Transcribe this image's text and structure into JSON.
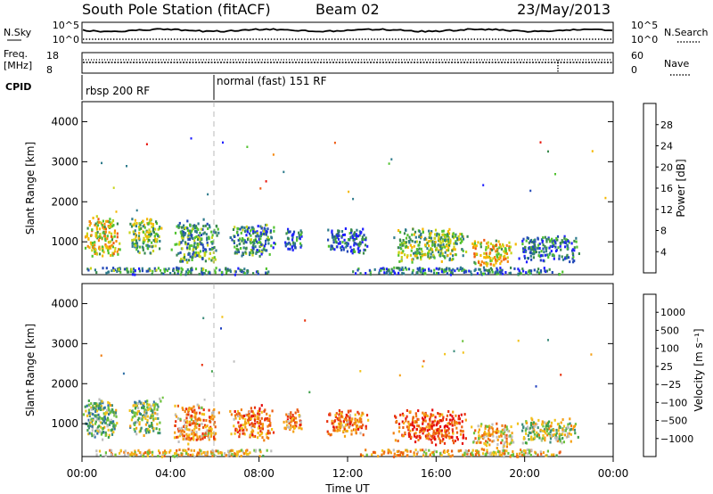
{
  "header": {
    "station": "South Pole Station (fitACF)",
    "beam": "Beam 02",
    "date": "23/May/2013"
  },
  "top_panels": {
    "nsky": {
      "label": "N.Sky",
      "ticks_left": [
        "10^5",
        "10^0"
      ],
      "right_label": "N.Search",
      "ticks_right": [
        "10^5",
        "10^0"
      ]
    },
    "freq": {
      "label_line1": "Freq.",
      "label_line2": "[MHz]",
      "ticks_left": [
        "18",
        "8"
      ],
      "right_label": "Nave",
      "ticks_right": [
        "60",
        "0"
      ]
    },
    "cpid": {
      "label": "CPID",
      "segments": [
        {
          "start_hour": 0,
          "text": "rbsp 200 RF"
        },
        {
          "start_hour": 6,
          "text": "normal (fast) 151 RF"
        }
      ]
    }
  },
  "time_axis": {
    "label": "Time UT",
    "ticks": [
      "00:00",
      "04:00",
      "08:00",
      "12:00",
      "16:00",
      "20:00",
      "00:00"
    ]
  },
  "chart_data": [
    {
      "type": "heatmap",
      "name": "power",
      "ylabel": "Slant Range [km]",
      "ylim": [
        180,
        4500
      ],
      "y_ticks": [
        1000,
        2000,
        3000,
        4000
      ],
      "xlim": [
        0,
        24
      ],
      "colorbar": {
        "label": "Power [dB]",
        "ticks": [
          "4",
          "8",
          "12",
          "16",
          "20",
          "24",
          "28"
        ],
        "colors": [
          "#1f1fff",
          "#2349b8",
          "#2e7b8c",
          "#3a8a4d",
          "#52c230",
          "#c8d41a",
          "#f5b800",
          "#f5870c",
          "#ee5a12",
          "#e8140a"
        ]
      },
      "features": [
        {
          "start_hour": 0.0,
          "end_hour": 1.7,
          "range_km": [
            600,
            1700
          ],
          "level": 0.6
        },
        {
          "start_hour": 2.0,
          "end_hour": 3.6,
          "range_km": [
            700,
            1700
          ],
          "level": 0.45
        },
        {
          "start_hour": 4.0,
          "end_hour": 6.2,
          "range_km": [
            500,
            1600
          ],
          "level": 0.35
        },
        {
          "start_hour": 6.6,
          "end_hour": 8.8,
          "range_km": [
            600,
            1500
          ],
          "level": 0.3
        },
        {
          "start_hour": 9.0,
          "end_hour": 10.0,
          "range_km": [
            800,
            1400
          ],
          "level": 0.2
        },
        {
          "start_hour": 11.0,
          "end_hour": 13.0,
          "range_km": [
            700,
            1400
          ],
          "level": 0.2
        },
        {
          "start_hour": 14.0,
          "end_hour": 17.5,
          "range_km": [
            500,
            1400
          ],
          "level": 0.45
        },
        {
          "start_hour": 17.5,
          "end_hour": 19.6,
          "range_km": [
            400,
            1100
          ],
          "level": 0.62
        },
        {
          "start_hour": 19.6,
          "end_hour": 22.5,
          "range_km": [
            500,
            1200
          ],
          "level": 0.25
        },
        {
          "start_hour": 0.0,
          "end_hour": 9.0,
          "range_km": [
            200,
            400
          ],
          "level": 0.3
        },
        {
          "start_hour": 12.0,
          "end_hour": 22.0,
          "range_km": [
            200,
            400
          ],
          "level": 0.25
        }
      ]
    },
    {
      "type": "heatmap",
      "name": "velocity",
      "ylabel": "Slant Range [km]",
      "ylim": [
        180,
        4500
      ],
      "y_ticks": [
        1000,
        2000,
        3000,
        4000
      ],
      "xlim": [
        0,
        24
      ],
      "colorbar": {
        "label": "Velocity [m s⁻¹]",
        "ticks": [
          "1000",
          "500",
          "100",
          "25",
          "−25",
          "−100",
          "−500",
          "−1000"
        ],
        "colors": [
          "#1f3fbf",
          "#2f6fa5",
          "#3e8d7c",
          "#3fa04a",
          "#6cc23c",
          "#bdbdbd",
          "#f2c21a",
          "#f5a013",
          "#f07e12",
          "#eb5a10",
          "#e8300c",
          "#e60d0d"
        ]
      },
      "features": [
        {
          "start_hour": 0.0,
          "end_hour": 1.7,
          "range_km": [
            600,
            1700
          ],
          "level": 0.35
        },
        {
          "start_hour": 2.0,
          "end_hour": 3.6,
          "range_km": [
            700,
            1700
          ],
          "level": 0.4
        },
        {
          "start_hour": 4.0,
          "end_hour": 6.2,
          "range_km": [
            500,
            1600
          ],
          "level": 0.65
        },
        {
          "start_hour": 6.6,
          "end_hour": 8.8,
          "range_km": [
            600,
            1500
          ],
          "level": 0.72
        },
        {
          "start_hour": 9.0,
          "end_hour": 10.0,
          "range_km": [
            800,
            1400
          ],
          "level": 0.7
        },
        {
          "start_hour": 11.0,
          "end_hour": 13.0,
          "range_km": [
            700,
            1400
          ],
          "level": 0.72
        },
        {
          "start_hour": 14.0,
          "end_hour": 17.5,
          "range_km": [
            500,
            1400
          ],
          "level": 0.82
        },
        {
          "start_hour": 17.5,
          "end_hour": 19.6,
          "range_km": [
            400,
            1100
          ],
          "level": 0.6
        },
        {
          "start_hour": 19.6,
          "end_hour": 22.5,
          "range_km": [
            500,
            1200
          ],
          "level": 0.45
        },
        {
          "start_hour": 0.0,
          "end_hour": 9.0,
          "range_km": [
            200,
            400
          ],
          "level": 0.55
        },
        {
          "start_hour": 12.0,
          "end_hour": 22.0,
          "range_km": [
            200,
            400
          ],
          "level": 0.58
        }
      ]
    }
  ]
}
